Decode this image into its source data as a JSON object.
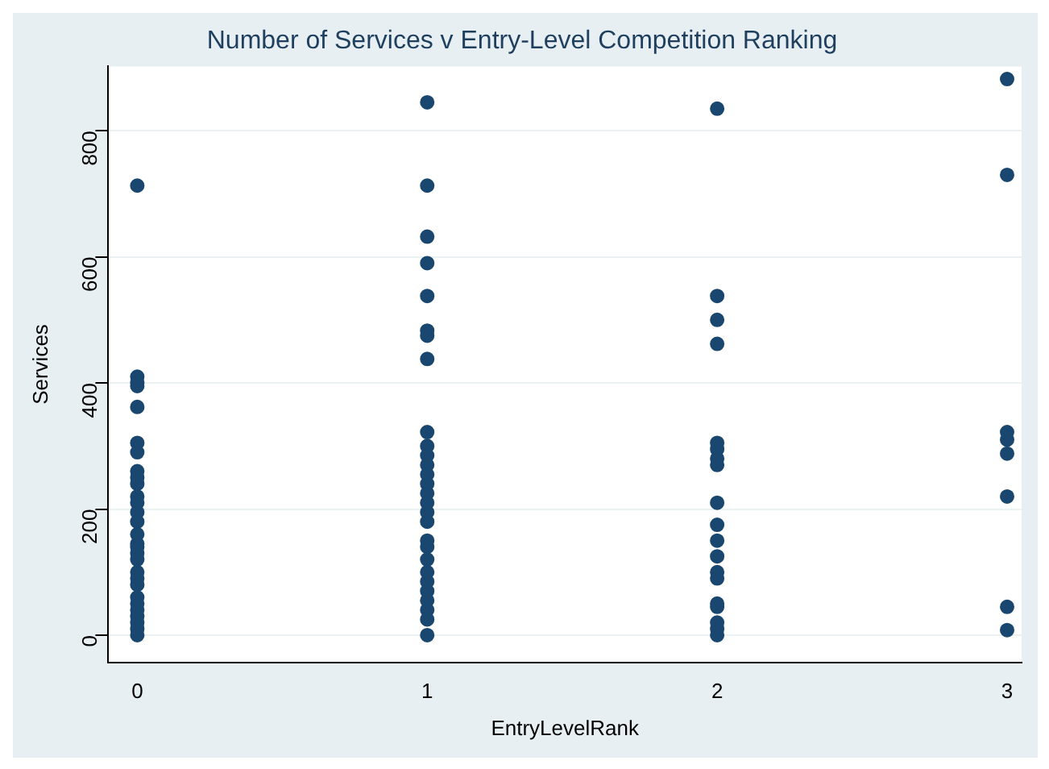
{
  "chart_data": {
    "type": "scatter",
    "title": "Number of Services v Entry-Level Competition Ranking",
    "xlabel": "EntryLevelRank",
    "ylabel": "Services",
    "x": [
      0,
      0,
      0,
      0,
      0,
      0,
      0,
      0,
      0,
      0,
      0,
      0,
      0,
      0,
      0,
      0,
      0,
      0,
      0,
      0,
      0,
      0,
      0,
      0,
      0,
      0,
      0,
      0,
      0,
      1,
      1,
      1,
      1,
      1,
      1,
      1,
      1,
      1,
      1,
      1,
      1,
      1,
      1,
      1,
      1,
      1,
      1,
      1,
      1,
      1,
      1,
      1,
      1,
      1,
      1,
      1,
      1,
      2,
      2,
      2,
      2,
      2,
      2,
      2,
      2,
      2,
      2,
      2,
      2,
      2,
      2,
      2,
      2,
      2,
      2,
      2,
      3,
      3,
      3,
      3,
      3,
      3,
      3,
      3
    ],
    "values": [
      713,
      410,
      400,
      395,
      362,
      305,
      290,
      260,
      250,
      240,
      220,
      210,
      195,
      180,
      160,
      145,
      140,
      130,
      120,
      100,
      90,
      80,
      60,
      50,
      40,
      30,
      20,
      10,
      0,
      845,
      713,
      632,
      590,
      538,
      483,
      475,
      438,
      322,
      300,
      285,
      270,
      255,
      240,
      225,
      210,
      195,
      180,
      150,
      140,
      120,
      100,
      85,
      70,
      55,
      40,
      25,
      0,
      835,
      538,
      500,
      462,
      305,
      295,
      280,
      270,
      210,
      175,
      150,
      125,
      100,
      90,
      50,
      45,
      20,
      10,
      0,
      882,
      730,
      322,
      310,
      288,
      220,
      45,
      8
    ],
    "color": "#1a476f",
    "marker": "circle",
    "xlim": [
      -0.1,
      3.05
    ],
    "ylim": [
      -43,
      902
    ],
    "xticks": [
      0,
      1,
      2,
      3
    ],
    "yticks": [
      0,
      200,
      400,
      600,
      800
    ],
    "grid": "y",
    "legend": false
  }
}
